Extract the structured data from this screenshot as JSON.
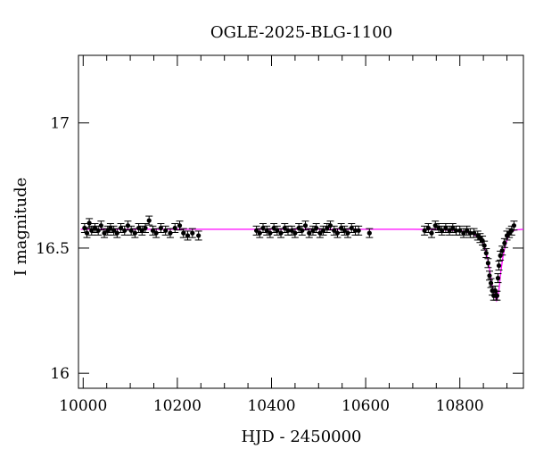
{
  "chart_data": {
    "type": "scatter",
    "title": "OGLE-2025-BLG-1100",
    "xlabel": "HJD - 2450000",
    "ylabel": "I magnitude",
    "xlim": [
      9990,
      10935
    ],
    "ylim": [
      17.27,
      15.94
    ],
    "y_inverted": true,
    "x_ticks": [
      10000,
      10200,
      10400,
      10600,
      10800
    ],
    "x_tick_labels": [
      "10000",
      "10200",
      "10400",
      "10600",
      "10800"
    ],
    "y_ticks": [
      16,
      16.5,
      17
    ],
    "y_tick_labels": [
      "16",
      "16.5",
      "17"
    ],
    "grid": false,
    "legend": "none",
    "colors": {
      "points": "#000000",
      "model": "#ff00ff",
      "frame": "#000000"
    },
    "series": [
      {
        "kind": "observations",
        "x": [
          10003,
          10008,
          10013,
          10018,
          10025,
          10032,
          10038,
          10045,
          10052,
          10058,
          10065,
          10072,
          10080,
          10088,
          10095,
          10102,
          10110,
          10118,
          10125,
          10132,
          10140,
          10148,
          10155,
          10165,
          10175,
          10185,
          10195,
          10205,
          10213,
          10222,
          10232,
          10245,
          10368,
          10375,
          10382,
          10390,
          10397,
          10405,
          10412,
          10420,
          10428,
          10435,
          10443,
          10450,
          10458,
          10465,
          10472,
          10480,
          10488,
          10495,
          10503,
          10510,
          10518,
          10525,
          10533,
          10540,
          10548,
          10555,
          10562,
          10570,
          10578,
          10585,
          10608,
          10725,
          10733,
          10740,
          10748,
          10755,
          10762,
          10770,
          10778,
          10785,
          10792,
          10800,
          10808,
          10815,
          10822,
          10830,
          10838,
          10843,
          10848,
          10852,
          10856,
          10860,
          10863,
          10866,
          10869,
          10872,
          10875,
          10877,
          10879,
          10881,
          10883,
          10886,
          10890,
          10895,
          10900,
          10905,
          10910,
          10915
        ],
        "y": [
          16.58,
          16.56,
          16.6,
          16.57,
          16.58,
          16.57,
          16.59,
          16.56,
          16.57,
          16.58,
          16.57,
          16.56,
          16.58,
          16.57,
          16.59,
          16.57,
          16.56,
          16.58,
          16.57,
          16.58,
          16.61,
          16.57,
          16.56,
          16.58,
          16.57,
          16.56,
          16.58,
          16.59,
          16.56,
          16.55,
          16.56,
          16.55,
          16.57,
          16.56,
          16.58,
          16.57,
          16.56,
          16.58,
          16.57,
          16.56,
          16.58,
          16.57,
          16.57,
          16.56,
          16.58,
          16.57,
          16.59,
          16.56,
          16.57,
          16.58,
          16.56,
          16.57,
          16.58,
          16.59,
          16.57,
          16.56,
          16.58,
          16.57,
          16.56,
          16.58,
          16.57,
          16.57,
          16.56,
          16.57,
          16.58,
          16.56,
          16.59,
          16.58,
          16.57,
          16.58,
          16.57,
          16.58,
          16.57,
          16.57,
          16.56,
          16.57,
          16.56,
          16.56,
          16.55,
          16.54,
          16.53,
          16.51,
          16.48,
          16.44,
          16.39,
          16.36,
          16.33,
          16.31,
          16.33,
          16.31,
          16.31,
          16.38,
          16.43,
          16.47,
          16.49,
          16.52,
          16.55,
          16.56,
          16.57,
          16.59
        ]
      },
      {
        "kind": "model",
        "baseline_mag": 16.575,
        "x": [
          9995,
          10700,
          10750,
          10780,
          10800,
          10815,
          10825,
          10835,
          10842,
          10848,
          10853,
          10857,
          10861,
          10864,
          10867,
          10870,
          10873,
          10876,
          10878,
          10880,
          10882,
          10884,
          10886,
          10888,
          10891,
          10894,
          10897,
          10900,
          10903,
          10906,
          10910,
          10915,
          10920,
          10935
        ],
        "y": [
          16.575,
          16.575,
          16.574,
          16.572,
          16.569,
          16.564,
          16.558,
          16.548,
          16.537,
          16.522,
          16.5,
          16.475,
          16.44,
          16.405,
          16.37,
          16.34,
          16.315,
          16.3,
          16.29,
          16.3,
          16.32,
          16.35,
          16.39,
          16.42,
          16.46,
          16.49,
          16.51,
          16.53,
          16.545,
          16.555,
          16.565,
          16.57,
          16.573,
          16.575
        ]
      }
    ]
  }
}
